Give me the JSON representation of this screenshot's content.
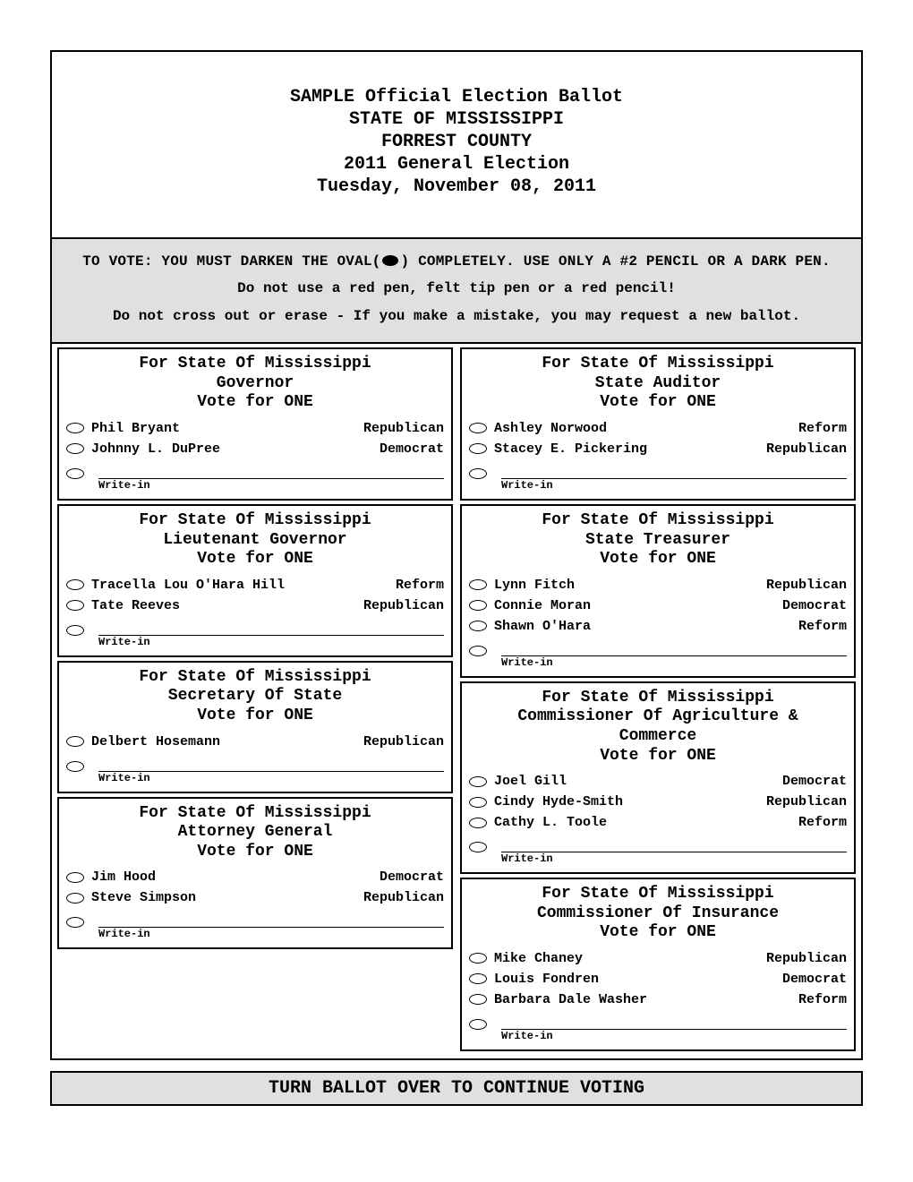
{
  "header": {
    "line1": "SAMPLE Official Election Ballot",
    "line2": "STATE OF MISSISSIPPI",
    "line3": "FORREST COUNTY",
    "line4": "2011 General Election",
    "line5": "Tuesday, November 08, 2011"
  },
  "instructions": {
    "line1_pre": "TO VOTE: YOU MUST DARKEN THE OVAL(",
    "line1_post": ") COMPLETELY. USE ONLY A #2 PENCIL OR A DARK PEN.",
    "line2": "Do not use a red pen, felt tip pen or a red pencil!",
    "line3": "Do not cross out or erase - If you make a mistake, you may request a new ballot."
  },
  "writein_label": "Write-in",
  "footer": "TURN BALLOT OVER TO CONTINUE VOTING",
  "left_contests": [
    {
      "title_l1": "For State Of Mississippi",
      "title_l2": "Governor",
      "title_l3": "Vote for ONE",
      "candidates": [
        {
          "name": "Phil Bryant",
          "party": "Republican"
        },
        {
          "name": "Johnny L. DuPree",
          "party": "Democrat"
        }
      ]
    },
    {
      "title_l1": "For State Of Mississippi",
      "title_l2": "Lieutenant Governor",
      "title_l3": "Vote for ONE",
      "candidates": [
        {
          "name": "Tracella Lou O'Hara Hill",
          "party": "Reform"
        },
        {
          "name": "Tate Reeves",
          "party": "Republican"
        }
      ]
    },
    {
      "title_l1": "For State Of Mississippi",
      "title_l2": "Secretary Of State",
      "title_l3": "Vote for ONE",
      "candidates": [
        {
          "name": "Delbert Hosemann",
          "party": "Republican"
        }
      ]
    },
    {
      "title_l1": "For State Of Mississippi",
      "title_l2": "Attorney General",
      "title_l3": "Vote for ONE",
      "candidates": [
        {
          "name": "Jim Hood",
          "party": "Democrat"
        },
        {
          "name": "Steve Simpson",
          "party": "Republican"
        }
      ]
    }
  ],
  "right_contests": [
    {
      "title_l1": "For State Of Mississippi",
      "title_l2": "State Auditor",
      "title_l3": "Vote for ONE",
      "candidates": [
        {
          "name": "Ashley Norwood",
          "party": "Reform"
        },
        {
          "name": "Stacey E. Pickering",
          "party": "Republican"
        }
      ]
    },
    {
      "title_l1": "For State Of Mississippi",
      "title_l2": "State Treasurer",
      "title_l3": "Vote for ONE",
      "candidates": [
        {
          "name": "Lynn Fitch",
          "party": "Republican"
        },
        {
          "name": "Connie Moran",
          "party": "Democrat"
        },
        {
          "name": "Shawn O'Hara",
          "party": "Reform"
        }
      ]
    },
    {
      "title_l1": "For State Of Mississippi",
      "title_l2": "Commissioner Of Agriculture &",
      "title_l2b": "Commerce",
      "title_l3": "Vote for ONE",
      "candidates": [
        {
          "name": "Joel Gill",
          "party": "Democrat"
        },
        {
          "name": "Cindy Hyde-Smith",
          "party": "Republican"
        },
        {
          "name": "Cathy L. Toole",
          "party": "Reform"
        }
      ]
    },
    {
      "title_l1": "For State Of Mississippi",
      "title_l2": "Commissioner Of Insurance",
      "title_l3": "Vote for ONE",
      "candidates": [
        {
          "name": "Mike Chaney",
          "party": "Republican"
        },
        {
          "name": "Louis Fondren",
          "party": "Democrat"
        },
        {
          "name": "Barbara Dale Washer",
          "party": "Reform"
        }
      ]
    }
  ],
  "colors": {
    "background": "#ffffff",
    "border": "#000000",
    "instruction_bg": "#e0e0e0"
  },
  "type": "document"
}
